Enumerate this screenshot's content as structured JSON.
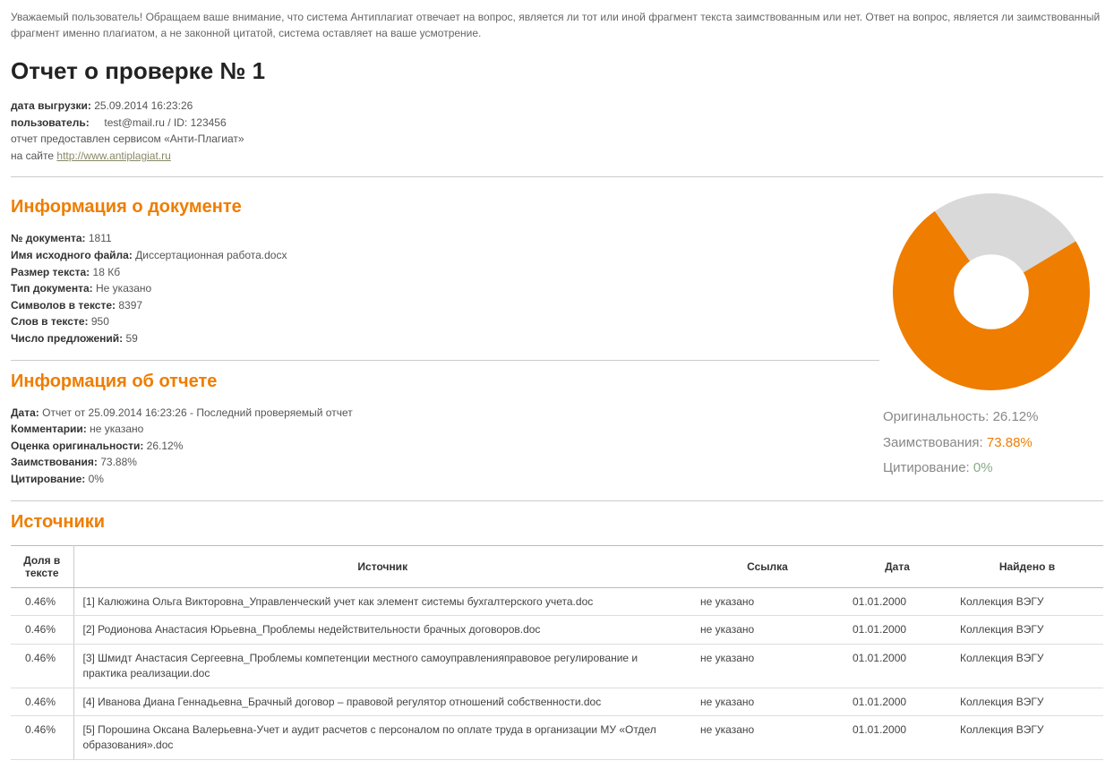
{
  "intro_text": "Уважаемый пользователь! Обращаем ваше внимание, что система Антиплагиат отвечает на вопрос, является ли тот или иной фрагмент текста заимствованным или нет. Ответ на вопрос, является ли заимствованный фрагмент именно плагиатом, а не законной цитатой, система оставляет на ваше усмотрение.",
  "page_title": "Отчет о проверке № 1",
  "meta": {
    "date_label": "дата выгрузки:",
    "date_value": "25.09.2014 16:23:26",
    "user_label": "пользователь:",
    "user_email": "test@mail.ru",
    "id_sep": " / ID: ",
    "user_id": "123456",
    "service_line": "отчет предоставлен сервисом «Анти-Плагиат»",
    "site_prefix": "на сайте ",
    "site_url": "http://www.antiplagiat.ru"
  },
  "doc_section_title": "Информация о документе",
  "doc": {
    "num_label": "№ документа:",
    "num_value": "1811",
    "filename_label": "Имя исходного файла:",
    "filename_value": "Диссертационная работа.docx",
    "size_label": "Размер текста:",
    "size_value": "18 Кб",
    "type_label": "Тип документа:",
    "type_value": "Не указано",
    "chars_label": "Символов в тексте:",
    "chars_value": "8397",
    "words_label": "Слов в тексте:",
    "words_value": "950",
    "sent_label": "Число предложений:",
    "sent_value": "59"
  },
  "report_section_title": "Информация об отчете",
  "report": {
    "date_label": "Дата:",
    "date_value": "Отчет от 25.09.2014 16:23:26 - Последний проверяемый отчет",
    "comments_label": "Комментарии:",
    "comments_value": "не указано",
    "orig_label": "Оценка оригинальности:",
    "orig_value": "26.12%",
    "borrow_label": "Заимствования:",
    "borrow_value": "73.88%",
    "cite_label": "Цитирование:",
    "cite_value": "0%"
  },
  "donut": {
    "originality_pct": 26.12,
    "borrowing_pct": 73.88,
    "citation_pct": 0,
    "color_originality": "#d9d9d9",
    "color_borrowing": "#ef7d00",
    "color_citation": "#8bc34a",
    "inner_color": "#ffffff",
    "outer_radius": 100,
    "inner_radius": 38,
    "start_angle_deg": -35
  },
  "legend": {
    "orig_label": "Оригинальность:",
    "orig_value": "26.12%",
    "borrow_label": "Заимствования:",
    "borrow_value": "73.88%",
    "cite_label": "Цитирование:",
    "cite_value": "0%"
  },
  "sources_title": "Источники",
  "sources_table": {
    "columns": {
      "share": "Доля в тексте",
      "source": "Источник",
      "link": "Ссылка",
      "date": "Дата",
      "found": "Найдено в"
    },
    "rows": [
      {
        "share": "0.46%",
        "source": "[1] Калюжина Ольга Викторовна_Управленческий учет как элемент системы бухгалтерского учета.doc",
        "link": "не указано",
        "date": "01.01.2000",
        "found": "Коллекция ВЭГУ"
      },
      {
        "share": "0.46%",
        "source": "[2] Родионова Анастасия Юрьевна_Проблемы недействительности брачных договоров.doc",
        "link": "не указано",
        "date": "01.01.2000",
        "found": "Коллекция ВЭГУ"
      },
      {
        "share": "0.46%",
        "source": "[3] Шмидт Анастасия Сергеевна_Проблемы компетенции местного самоуправленияправовое регулирование и практика реализации.doc",
        "link": "не указано",
        "date": "01.01.2000",
        "found": "Коллекция ВЭГУ"
      },
      {
        "share": "0.46%",
        "source": "[4] Иванова Диана Геннадьевна_Брачный договор – правовой регулятор отношений собственности.doc",
        "link": "не указано",
        "date": "01.01.2000",
        "found": "Коллекция ВЭГУ"
      },
      {
        "share": "0.46%",
        "source": "[5] Порошина Оксана Валерьевна-Учет и аудит расчетов с персоналом по оплате труда в организации МУ «Отдел образования».doc",
        "link": "не указано",
        "date": "01.01.2000",
        "found": "Коллекция ВЭГУ"
      }
    ]
  }
}
